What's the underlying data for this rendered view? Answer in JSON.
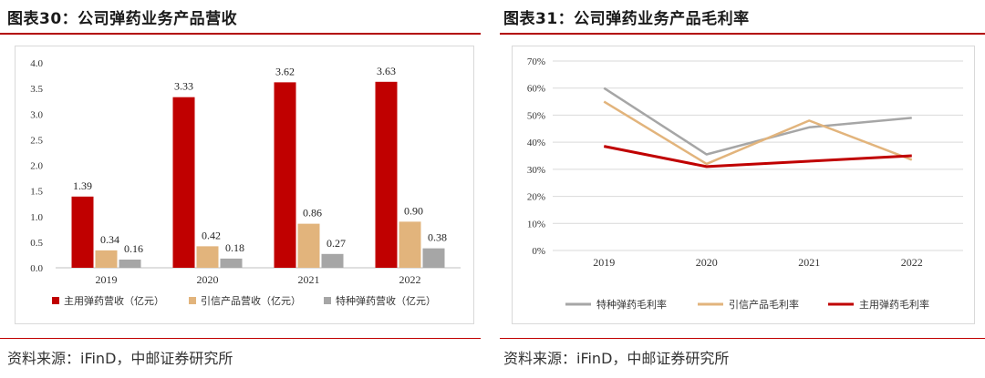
{
  "left": {
    "title": "图表30：公司弹药业务产品营收",
    "source": "资料来源：iFinD，中邮证券研究所"
  },
  "right": {
    "title": "图表31：公司弹药业务产品毛利率",
    "source": "资料来源：iFinD，中邮证券研究所"
  },
  "colors": {
    "main": "#c00000",
    "yinxin": "#e2b47c",
    "tezhong": "#a6a6a6",
    "rule": "#b30000"
  },
  "chart_data": [
    {
      "type": "bar",
      "title": "公司弹药业务产品营收",
      "categories": [
        "2019",
        "2020",
        "2021",
        "2022"
      ],
      "ylim": [
        0,
        4.0
      ],
      "yticks": [
        "0.0",
        "0.5",
        "1.0",
        "1.5",
        "2.0",
        "2.5",
        "3.0",
        "3.5",
        "4.0"
      ],
      "series": [
        {
          "name": "主用弹药营收（亿元）",
          "color_key": "main",
          "values": [
            1.39,
            3.33,
            3.62,
            3.63
          ],
          "labels": [
            "1.39",
            "3.33",
            "3.62",
            "3.63"
          ]
        },
        {
          "name": "引信产品营收（亿元）",
          "color_key": "yinxin",
          "values": [
            0.34,
            0.42,
            0.86,
            0.9
          ],
          "labels": [
            "0.34",
            "0.42",
            "0.86",
            "0.90"
          ]
        },
        {
          "name": "特种弹药营收（亿元）",
          "color_key": "tezhong",
          "values": [
            0.16,
            0.18,
            0.27,
            0.38
          ],
          "labels": [
            "0.16",
            "0.18",
            "0.27",
            "0.38"
          ]
        }
      ],
      "legend": "bottom"
    },
    {
      "type": "line",
      "title": "公司弹药业务产品毛利率",
      "categories": [
        "2019",
        "2020",
        "2021",
        "2022"
      ],
      "ylim": [
        0,
        70
      ],
      "yticks": [
        "0%",
        "10%",
        "20%",
        "30%",
        "40%",
        "50%",
        "60%",
        "70%"
      ],
      "series": [
        {
          "name": "特种弹药毛利率",
          "color_key": "tezhong",
          "values": [
            60,
            35.5,
            45.5,
            49
          ]
        },
        {
          "name": "引信产品毛利率",
          "color_key": "yinxin",
          "values": [
            55,
            32,
            48,
            33.5
          ]
        },
        {
          "name": "主用弹药毛利率",
          "color_key": "main",
          "values": [
            38.5,
            31,
            33,
            35
          ]
        }
      ],
      "legend": "bottom"
    }
  ]
}
